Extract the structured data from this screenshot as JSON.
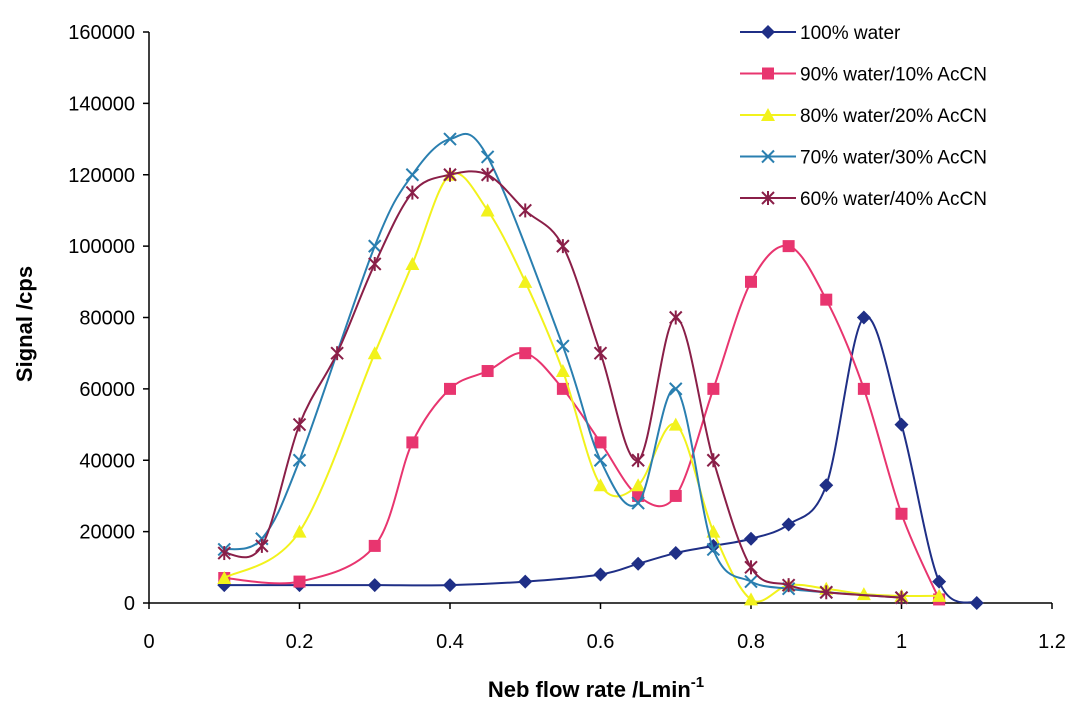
{
  "chart_data": {
    "type": "line",
    "title": "",
    "xlabel": "Neb flow rate /Lmin",
    "xlabel_superscript": "-1",
    "ylabel": "Signal /cps",
    "xlim": [
      0,
      1.2
    ],
    "ylim": [
      0,
      160000
    ],
    "x_ticks": [
      "0",
      "0.2",
      "0.4",
      "0.6",
      "0.8",
      "1",
      "1.2"
    ],
    "y_ticks": [
      "0",
      "20000",
      "40000",
      "60000",
      "80000",
      "100000",
      "120000",
      "140000",
      "160000"
    ],
    "grid": false,
    "legend_position": "top-right",
    "series": [
      {
        "name": "100% water",
        "color": "#1f2f86",
        "marker": "diamond",
        "x": [
          0.1,
          0.2,
          0.3,
          0.4,
          0.5,
          0.6,
          0.65,
          0.7,
          0.75,
          0.8,
          0.85,
          0.9,
          0.95,
          1.0,
          1.05,
          1.1
        ],
        "y": [
          5000,
          5000,
          5000,
          5000,
          6000,
          8000,
          11000,
          14000,
          16000,
          18000,
          22000,
          33000,
          80000,
          50000,
          6000,
          0
        ]
      },
      {
        "name": "90% water/10% AcCN",
        "color": "#e8356f",
        "marker": "square",
        "x": [
          0.1,
          0.2,
          0.3,
          0.35,
          0.4,
          0.45,
          0.5,
          0.55,
          0.6,
          0.65,
          0.7,
          0.75,
          0.8,
          0.85,
          0.9,
          0.95,
          1.0,
          1.05
        ],
        "y": [
          7000,
          6000,
          16000,
          45000,
          60000,
          65000,
          70000,
          60000,
          45000,
          30000,
          30000,
          60000,
          90000,
          100000,
          85000,
          60000,
          25000,
          1000
        ]
      },
      {
        "name": "80% water/20% AcCN",
        "color": "#f2f21c",
        "marker": "triangle",
        "x": [
          0.1,
          0.2,
          0.3,
          0.35,
          0.4,
          0.45,
          0.5,
          0.55,
          0.6,
          0.65,
          0.7,
          0.75,
          0.8,
          0.85,
          0.9,
          0.95,
          1.0,
          1.05
        ],
        "y": [
          7000,
          20000,
          70000,
          95000,
          120000,
          110000,
          90000,
          65000,
          33000,
          33000,
          50000,
          20000,
          1000,
          5000,
          4000,
          2500,
          2000,
          2000
        ]
      },
      {
        "name": "70% water/30% AcCN",
        "color": "#2a7fb0",
        "marker": "x",
        "x": [
          0.1,
          0.15,
          0.2,
          0.3,
          0.35,
          0.4,
          0.45,
          0.55,
          0.6,
          0.65,
          0.7,
          0.75,
          0.8,
          0.85,
          0.9,
          1.0
        ],
        "y": [
          15000,
          18000,
          40000,
          100000,
          120000,
          130000,
          125000,
          72000,
          40000,
          28000,
          60000,
          15000,
          6000,
          4000,
          3000,
          1500
        ]
      },
      {
        "name": "60% water/40% AcCN",
        "color": "#8a1f48",
        "marker": "star",
        "x": [
          0.1,
          0.15,
          0.2,
          0.25,
          0.3,
          0.35,
          0.4,
          0.45,
          0.5,
          0.55,
          0.6,
          0.65,
          0.7,
          0.75,
          0.8,
          0.85,
          0.9,
          1.0
        ],
        "y": [
          14000,
          16000,
          50000,
          70000,
          95000,
          115000,
          120000,
          120000,
          110000,
          100000,
          70000,
          40000,
          80000,
          40000,
          10000,
          5000,
          3000,
          1500
        ]
      }
    ]
  }
}
